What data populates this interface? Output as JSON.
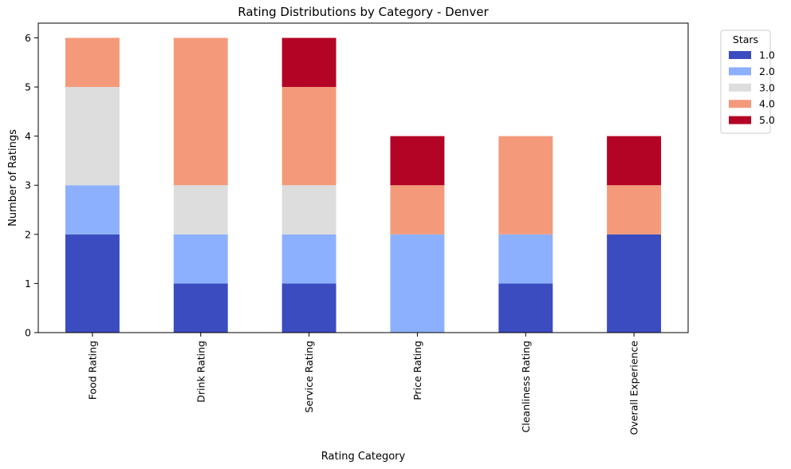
{
  "chart_data": {
    "type": "bar",
    "stacked": true,
    "title": "Rating Distributions by Category - Denver",
    "xlabel": "Rating Category",
    "ylabel": "Number of Ratings",
    "ylim": [
      0,
      6.3
    ],
    "yticks": [
      "0",
      "1",
      "2",
      "3",
      "4",
      "5",
      "6"
    ],
    "grid": false,
    "legend": {
      "title": "Stars",
      "placement": "outside-top-right"
    },
    "categories": [
      "Food Rating",
      "Drink Rating",
      "Service Rating",
      "Price Rating",
      "Cleanliness Rating",
      "Overall Experience"
    ],
    "series": [
      {
        "name": "1.0",
        "color": "#3b4cc0",
        "values": [
          2,
          1,
          1,
          0,
          1,
          2
        ]
      },
      {
        "name": "2.0",
        "color": "#8db0fe",
        "values": [
          1,
          1,
          1,
          2,
          1,
          0
        ]
      },
      {
        "name": "3.0",
        "color": "#dddddd",
        "values": [
          2,
          1,
          1,
          0,
          0,
          0
        ]
      },
      {
        "name": "4.0",
        "color": "#f49a7b",
        "values": [
          1,
          3,
          2,
          1,
          2,
          1
        ]
      },
      {
        "name": "5.0",
        "color": "#b40426",
        "values": [
          0,
          0,
          1,
          1,
          0,
          1
        ]
      }
    ]
  }
}
